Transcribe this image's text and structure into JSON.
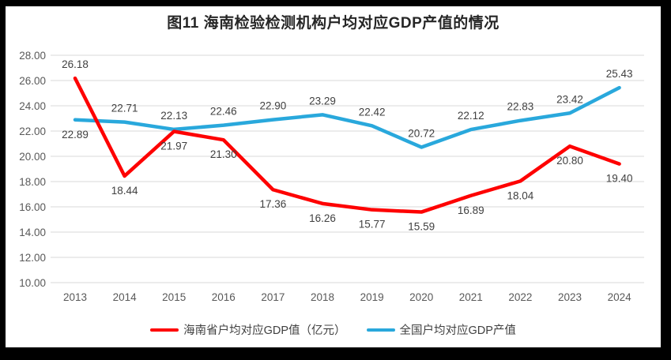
{
  "chart_data": {
    "type": "line",
    "title": "图11 海南检验检测机构户均对应GDP产值的情况",
    "categories": [
      "2013",
      "2014",
      "2015",
      "2016",
      "2017",
      "2018",
      "2019",
      "2020",
      "2021",
      "2022",
      "2023",
      "2024"
    ],
    "series": [
      {
        "name": "海南省户均对应GDP值（亿元）",
        "color": "#FE0000",
        "values": [
          26.18,
          18.44,
          21.97,
          21.3,
          17.36,
          16.26,
          15.77,
          15.59,
          16.89,
          18.04,
          20.8,
          19.4
        ]
      },
      {
        "name": "全国户均对应GDP产值",
        "color": "#29A8DC",
        "values": [
          22.89,
          22.71,
          22.13,
          22.46,
          22.9,
          23.29,
          22.42,
          20.72,
          22.12,
          22.83,
          23.42,
          25.43
        ]
      }
    ],
    "xlabel": "",
    "ylabel": "",
    "ylim": [
      10,
      28
    ],
    "ytick_step": 2,
    "ytick_format": "2dp",
    "grid": true,
    "legend_position": "bottom",
    "colors": {
      "grid": "#D9D9D9",
      "tick_text": "#595959",
      "data_label": "#404040",
      "title_text": "#262626",
      "frame": "#000000",
      "background": "#FFFFFF"
    }
  }
}
